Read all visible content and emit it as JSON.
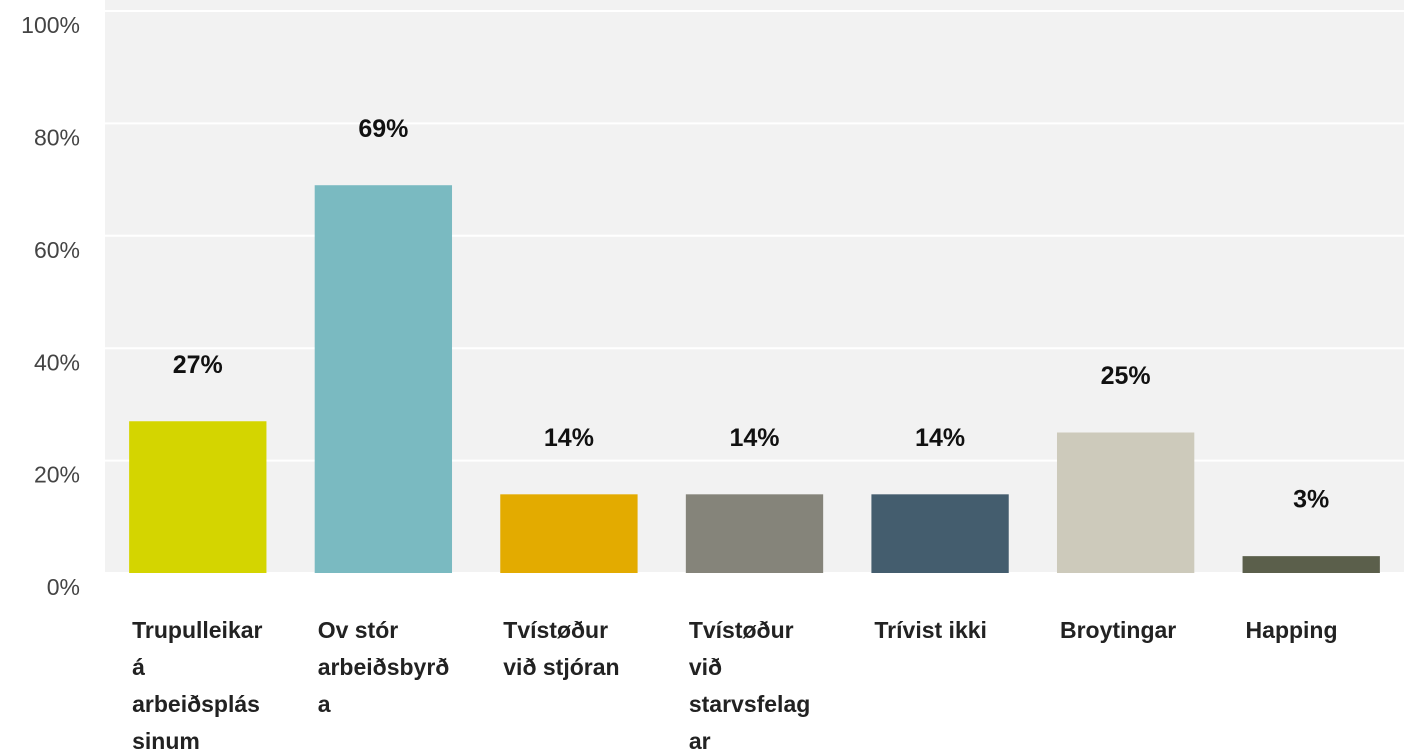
{
  "chart_data": {
    "type": "bar",
    "categories": [
      "Trupulleikar á arbeiðsplássinum",
      "Ov stór arbeiðsbyrða",
      "Tvístøður við stjóran",
      "Tvístøður við starvsfelagar",
      "Trívist ikki",
      "Broytingar",
      "Happing"
    ],
    "values": [
      27,
      69,
      14,
      14,
      14,
      25,
      3
    ],
    "value_labels": [
      "27%",
      "69%",
      "14%",
      "14%",
      "14%",
      "25%",
      "3%"
    ],
    "colors": [
      "#d4d500",
      "#7abac1",
      "#e3ab00",
      "#85847a",
      "#445d6e",
      "#cdcabb",
      "#5b5f4b"
    ],
    "ylim": [
      0,
      100
    ],
    "yticks": [
      {
        "value": 0,
        "label": "0%"
      },
      {
        "value": 20,
        "label": "20%"
      },
      {
        "value": 40,
        "label": "40%"
      },
      {
        "value": 60,
        "label": "60%"
      },
      {
        "value": 80,
        "label": "80%"
      },
      {
        "value": 100,
        "label": "100%"
      }
    ],
    "grid": true
  }
}
